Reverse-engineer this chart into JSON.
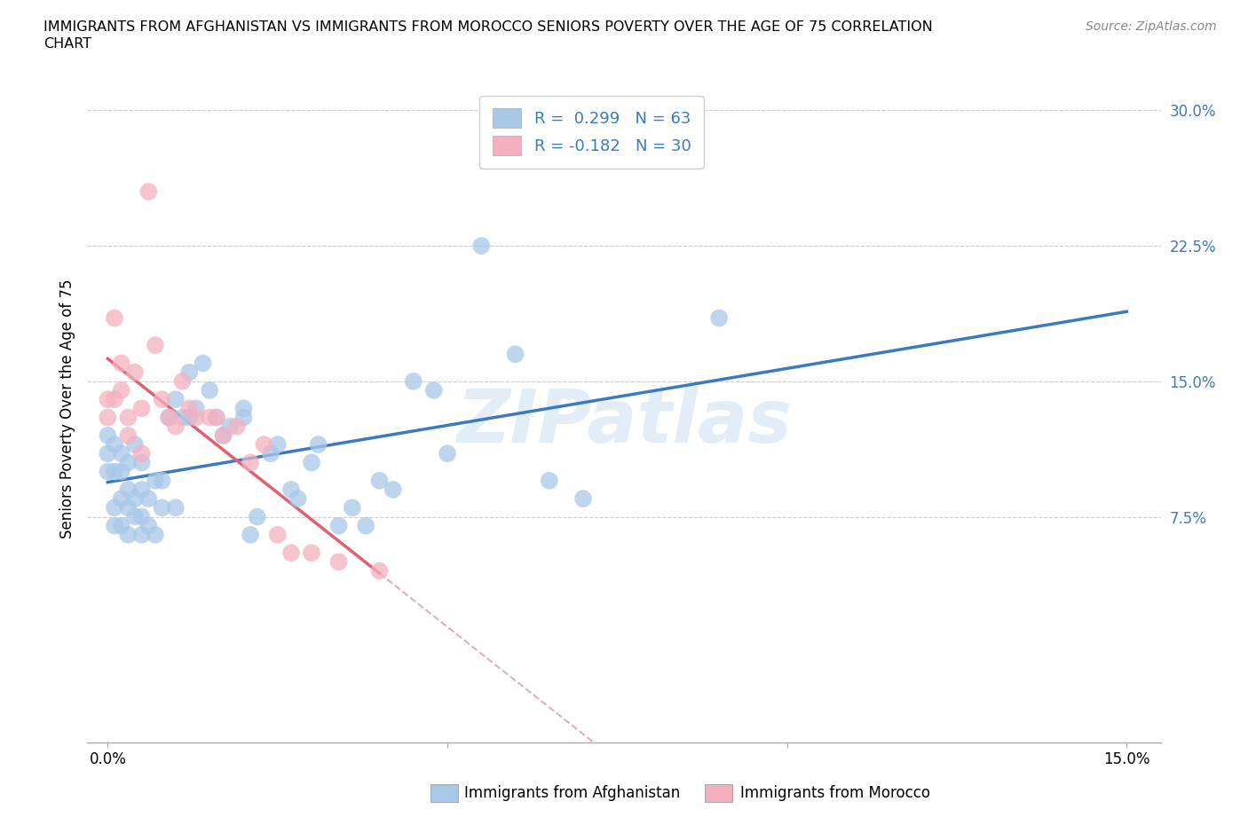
{
  "title_line1": "IMMIGRANTS FROM AFGHANISTAN VS IMMIGRANTS FROM MOROCCO SENIORS POVERTY OVER THE AGE OF 75 CORRELATION",
  "title_line2": "CHART",
  "source": "Source: ZipAtlas.com",
  "ylabel": "Seniors Poverty Over the Age of 75",
  "R_afg": 0.299,
  "N_afg": 63,
  "R_mor": -0.182,
  "N_mor": 30,
  "color_afg": "#a8c8e8",
  "color_mor": "#f4b0c0",
  "line_color_afg": "#3a7abf",
  "line_color_mor": "#e06070",
  "line_dash_color": "#e0b0b8",
  "tick_color": "#3a7abf",
  "watermark": "ZIPatlas",
  "xlim": [
    -0.003,
    0.155
  ],
  "ylim": [
    -0.05,
    0.32
  ],
  "ytick_vals": [
    0.075,
    0.15,
    0.225,
    0.3
  ],
  "ytick_labels": [
    "7.5%",
    "15.0%",
    "22.5%",
    "30.0%"
  ],
  "xtick_vals": [
    0.0,
    0.05,
    0.1,
    0.15
  ],
  "xtick_labels": [
    "0.0%",
    "",
    "",
    "15.0%"
  ],
  "afg_x": [
    0.0,
    0.0,
    0.0,
    0.001,
    0.001,
    0.001,
    0.001,
    0.002,
    0.002,
    0.002,
    0.002,
    0.003,
    0.003,
    0.003,
    0.003,
    0.004,
    0.004,
    0.004,
    0.005,
    0.005,
    0.005,
    0.005,
    0.006,
    0.006,
    0.007,
    0.007,
    0.008,
    0.008,
    0.009,
    0.01,
    0.01,
    0.011,
    0.012,
    0.012,
    0.013,
    0.014,
    0.015,
    0.016,
    0.017,
    0.018,
    0.02,
    0.02,
    0.021,
    0.022,
    0.024,
    0.025,
    0.027,
    0.028,
    0.03,
    0.031,
    0.034,
    0.036,
    0.038,
    0.04,
    0.042,
    0.045,
    0.048,
    0.05,
    0.055,
    0.06,
    0.065,
    0.07,
    0.09
  ],
  "afg_y": [
    0.1,
    0.11,
    0.12,
    0.07,
    0.08,
    0.1,
    0.115,
    0.07,
    0.085,
    0.1,
    0.11,
    0.065,
    0.08,
    0.09,
    0.105,
    0.075,
    0.085,
    0.115,
    0.065,
    0.075,
    0.09,
    0.105,
    0.07,
    0.085,
    0.065,
    0.095,
    0.08,
    0.095,
    0.13,
    0.08,
    0.14,
    0.13,
    0.13,
    0.155,
    0.135,
    0.16,
    0.145,
    0.13,
    0.12,
    0.125,
    0.13,
    0.135,
    0.065,
    0.075,
    0.11,
    0.115,
    0.09,
    0.085,
    0.105,
    0.115,
    0.07,
    0.08,
    0.07,
    0.095,
    0.09,
    0.15,
    0.145,
    0.11,
    0.225,
    0.165,
    0.095,
    0.085,
    0.185
  ],
  "mor_x": [
    0.0,
    0.0,
    0.001,
    0.001,
    0.002,
    0.002,
    0.003,
    0.003,
    0.004,
    0.005,
    0.005,
    0.006,
    0.007,
    0.008,
    0.009,
    0.01,
    0.011,
    0.012,
    0.013,
    0.015,
    0.016,
    0.017,
    0.019,
    0.021,
    0.023,
    0.025,
    0.027,
    0.03,
    0.034,
    0.04
  ],
  "mor_y": [
    0.13,
    0.14,
    0.185,
    0.14,
    0.16,
    0.145,
    0.13,
    0.12,
    0.155,
    0.135,
    0.11,
    0.255,
    0.17,
    0.14,
    0.13,
    0.125,
    0.15,
    0.135,
    0.13,
    0.13,
    0.13,
    0.12,
    0.125,
    0.105,
    0.115,
    0.065,
    0.055,
    0.055,
    0.05,
    0.045
  ]
}
